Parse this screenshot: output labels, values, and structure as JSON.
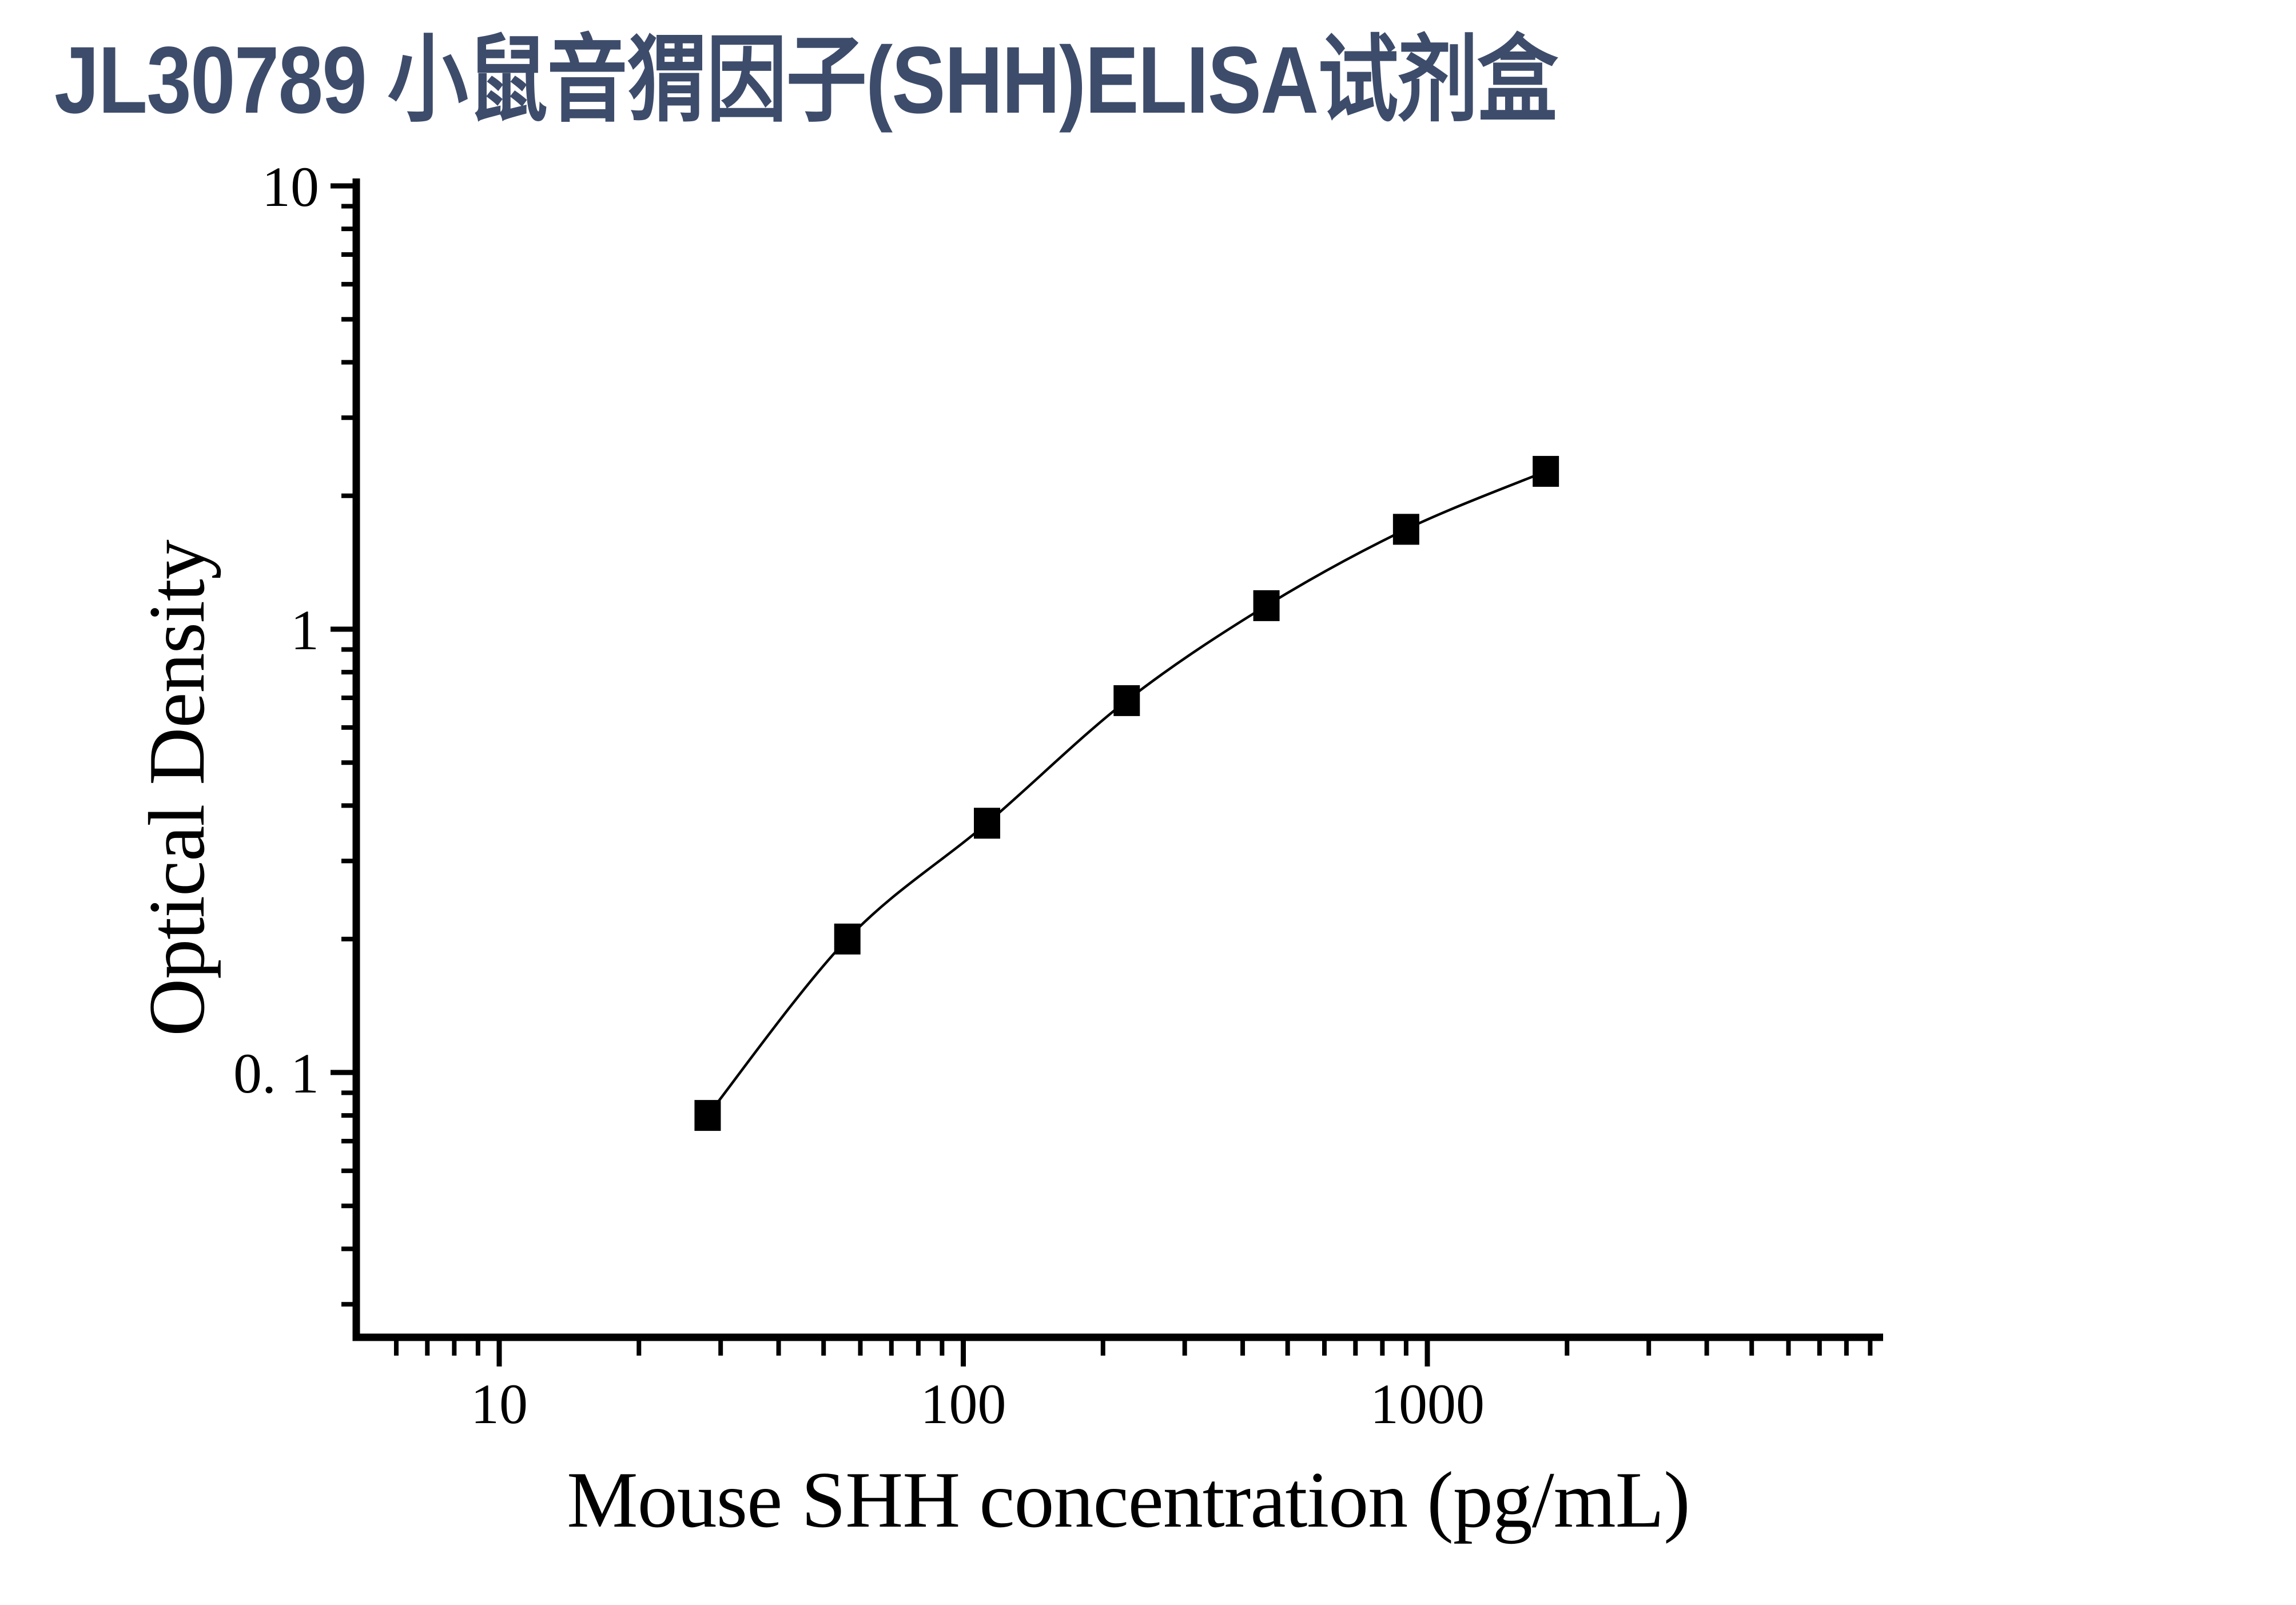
{
  "page": {
    "background": "#ffffff"
  },
  "title": {
    "text": "JL30789 小鼠音猬因子(SHH)ELISA试剂盒",
    "color": "#3E4C6B"
  },
  "chart_data": {
    "type": "scatter",
    "subtype": "ELISA standard curve, log-log axes, smooth fitted line through filled square markers",
    "title": "JL30789 小鼠音猬因子(SHH)ELISA试剂盒",
    "xlabel": "Mouse SHH concentration (pg/mL)",
    "ylabel": "Optical Density",
    "x_scale": "log10",
    "y_scale": "log10",
    "xlim": [
      5,
      9500
    ],
    "ylim": [
      0.025,
      10
    ],
    "x_major_ticks": {
      "values": [
        10,
        100,
        1000
      ],
      "labels": [
        "10",
        "100",
        "1000"
      ]
    },
    "y_major_ticks": {
      "values": [
        10,
        1,
        0.1
      ],
      "labels": [
        "10",
        "1",
        "0. 1"
      ]
    },
    "minor_ticks": "log minor ticks 2-9 per decade on both axes",
    "grid": false,
    "legend": "none",
    "marker": "filled-black-square",
    "line_color": "#000000",
    "series": [
      {
        "name": "standard-curve",
        "x": [
          28.125,
          56.25,
          112.5,
          225,
          450,
          900,
          1800
        ],
        "y": [
          0.08,
          0.2,
          0.365,
          0.69,
          1.13,
          1.68,
          2.27
        ]
      }
    ]
  }
}
